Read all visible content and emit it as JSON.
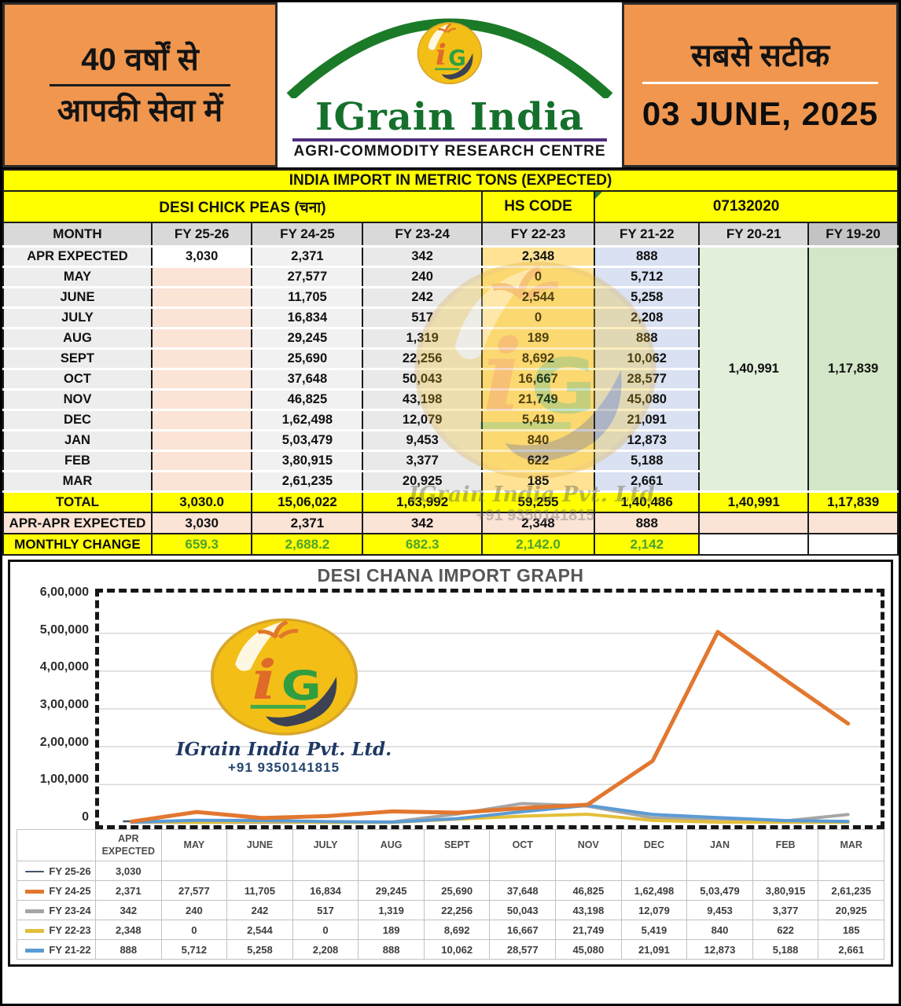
{
  "header": {
    "left_line1": "40 वर्षों से",
    "left_line2": "आपकी सेवा में",
    "right_line1": "सबसे सटीक",
    "date": "03 JUNE, 2025",
    "logo": {
      "monogram_i": "i",
      "monogram_g": "G",
      "brand": "IGrain India",
      "tagline": "AGRI-COMMODITY RESEARCH CENTRE"
    }
  },
  "watermark": {
    "brand": "IGrain India Pvt. Ltd.",
    "phone": "+91 9350141815"
  },
  "table": {
    "banner": "INDIA IMPORT IN METRIC TONS (EXPECTED)",
    "product": "DESI CHICK PEAS (चना)",
    "hs_code_label": "HS CODE",
    "hs_code_value": "07132020",
    "columns": [
      "MONTH",
      "FY 25-26",
      "FY 24-25",
      "FY 23-24",
      "FY 22-23",
      "FY 21-22",
      "FY 20-21",
      "FY 19-20"
    ],
    "rows": [
      [
        "APR EXPECTED",
        "3,030",
        "2,371",
        "342",
        "2,348",
        "888"
      ],
      [
        "MAY",
        "",
        "27,577",
        "240",
        "0",
        "5,712"
      ],
      [
        "JUNE",
        "",
        "11,705",
        "242",
        "2,544",
        "5,258"
      ],
      [
        "JULY",
        "",
        "16,834",
        "517",
        "0",
        "2,208"
      ],
      [
        "AUG",
        "",
        "29,245",
        "1,319",
        "189",
        "888"
      ],
      [
        "SEPT",
        "",
        "25,690",
        "22,256",
        "8,692",
        "10,062"
      ],
      [
        "OCT",
        "",
        "37,648",
        "50,043",
        "16,667",
        "28,577"
      ],
      [
        "NOV",
        "",
        "46,825",
        "43,198",
        "21,749",
        "45,080"
      ],
      [
        "DEC",
        "",
        "1,62,498",
        "12,079",
        "5,419",
        "21,091"
      ],
      [
        "JAN",
        "",
        "5,03,479",
        "9,453",
        "840",
        "12,873"
      ],
      [
        "FEB",
        "",
        "3,80,915",
        "3,377",
        "622",
        "5,188"
      ],
      [
        "MAR",
        "",
        "2,61,235",
        "20,925",
        "185",
        "2,661"
      ]
    ],
    "fy2021_total": "1,40,991",
    "fy1920_total": "1,17,839",
    "footer_rows": [
      {
        "label": "TOTAL",
        "style": "f-total",
        "values": [
          "3,030.0",
          "15,06,022",
          "1,63,992",
          "59,255",
          "1,40,486",
          "1,40,991",
          "1,17,839"
        ]
      },
      {
        "label": "APR-APR EXPECTED",
        "style": "f-apr",
        "values": [
          "3,030",
          "2,371",
          "342",
          "2,348",
          "888",
          "",
          ""
        ]
      },
      {
        "label": "MONTHLY CHANGE",
        "style": "f-change",
        "values": [
          "659.3",
          "2,688.2",
          "682.3",
          "2,142.0",
          "2,142",
          "",
          ""
        ]
      }
    ]
  },
  "chart_data": {
    "type": "line",
    "title": "DESI CHANA IMPORT GRAPH",
    "categories": [
      "APR EXPECTED",
      "MAY",
      "JUNE",
      "JULY",
      "AUG",
      "SEPT",
      "OCT",
      "NOV",
      "DEC",
      "JAN",
      "FEB",
      "MAR"
    ],
    "ylim": [
      0,
      600000
    ],
    "yticks": [
      "6,00,000",
      "5,00,000",
      "4,00,000",
      "3,00,000",
      "2,00,000",
      "1,00,000",
      "0"
    ],
    "grid": true,
    "legend_position": "left-of-data-table",
    "series": [
      {
        "name": "FY 25-26",
        "color": "#44546a",
        "width": 2.5,
        "swatch_h": 2,
        "values": [
          3030,
          null,
          null,
          null,
          null,
          null,
          null,
          null,
          null,
          null,
          null,
          null
        ],
        "display": [
          "3,030",
          "",
          "",
          "",
          "",
          "",
          "",
          "",
          "",
          "",
          "",
          ""
        ]
      },
      {
        "name": "FY 24-25",
        "color": "#e2772f",
        "width": 5,
        "swatch_h": 5,
        "values": [
          2371,
          27577,
          11705,
          16834,
          29245,
          25690,
          37648,
          46825,
          162498,
          503479,
          380915,
          261235
        ],
        "display": [
          "2,371",
          "27,577",
          "11,705",
          "16,834",
          "29,245",
          "25,690",
          "37,648",
          "46,825",
          "1,62,498",
          "5,03,479",
          "3,80,915",
          "2,61,235"
        ]
      },
      {
        "name": "FY 23-24",
        "color": "#a6a6a6",
        "width": 4,
        "swatch_h": 5,
        "values": [
          342,
          240,
          242,
          517,
          1319,
          22256,
          50043,
          43198,
          12079,
          9453,
          3377,
          20925
        ],
        "display": [
          "342",
          "240",
          "242",
          "517",
          "1,319",
          "22,256",
          "50,043",
          "43,198",
          "12,079",
          "9,453",
          "3,377",
          "20,925"
        ]
      },
      {
        "name": "FY 22-23",
        "color": "#e3bf3a",
        "width": 4,
        "swatch_h": 5,
        "values": [
          2348,
          0,
          2544,
          0,
          189,
          8692,
          16667,
          21749,
          5419,
          840,
          622,
          185
        ],
        "display": [
          "2,348",
          "0",
          "2,544",
          "0",
          "189",
          "8,692",
          "16,667",
          "21,749",
          "5,419",
          "840",
          "622",
          "185"
        ]
      },
      {
        "name": "FY 21-22",
        "color": "#5b9bd5",
        "width": 4,
        "swatch_h": 5,
        "values": [
          888,
          5712,
          5258,
          2208,
          888,
          10062,
          28577,
          45080,
          21091,
          12873,
          5188,
          2661
        ],
        "display": [
          "888",
          "5,712",
          "5,258",
          "2,208",
          "888",
          "10,062",
          "28,577",
          "45,080",
          "21,091",
          "12,873",
          "5,188",
          "2,661"
        ]
      }
    ]
  }
}
